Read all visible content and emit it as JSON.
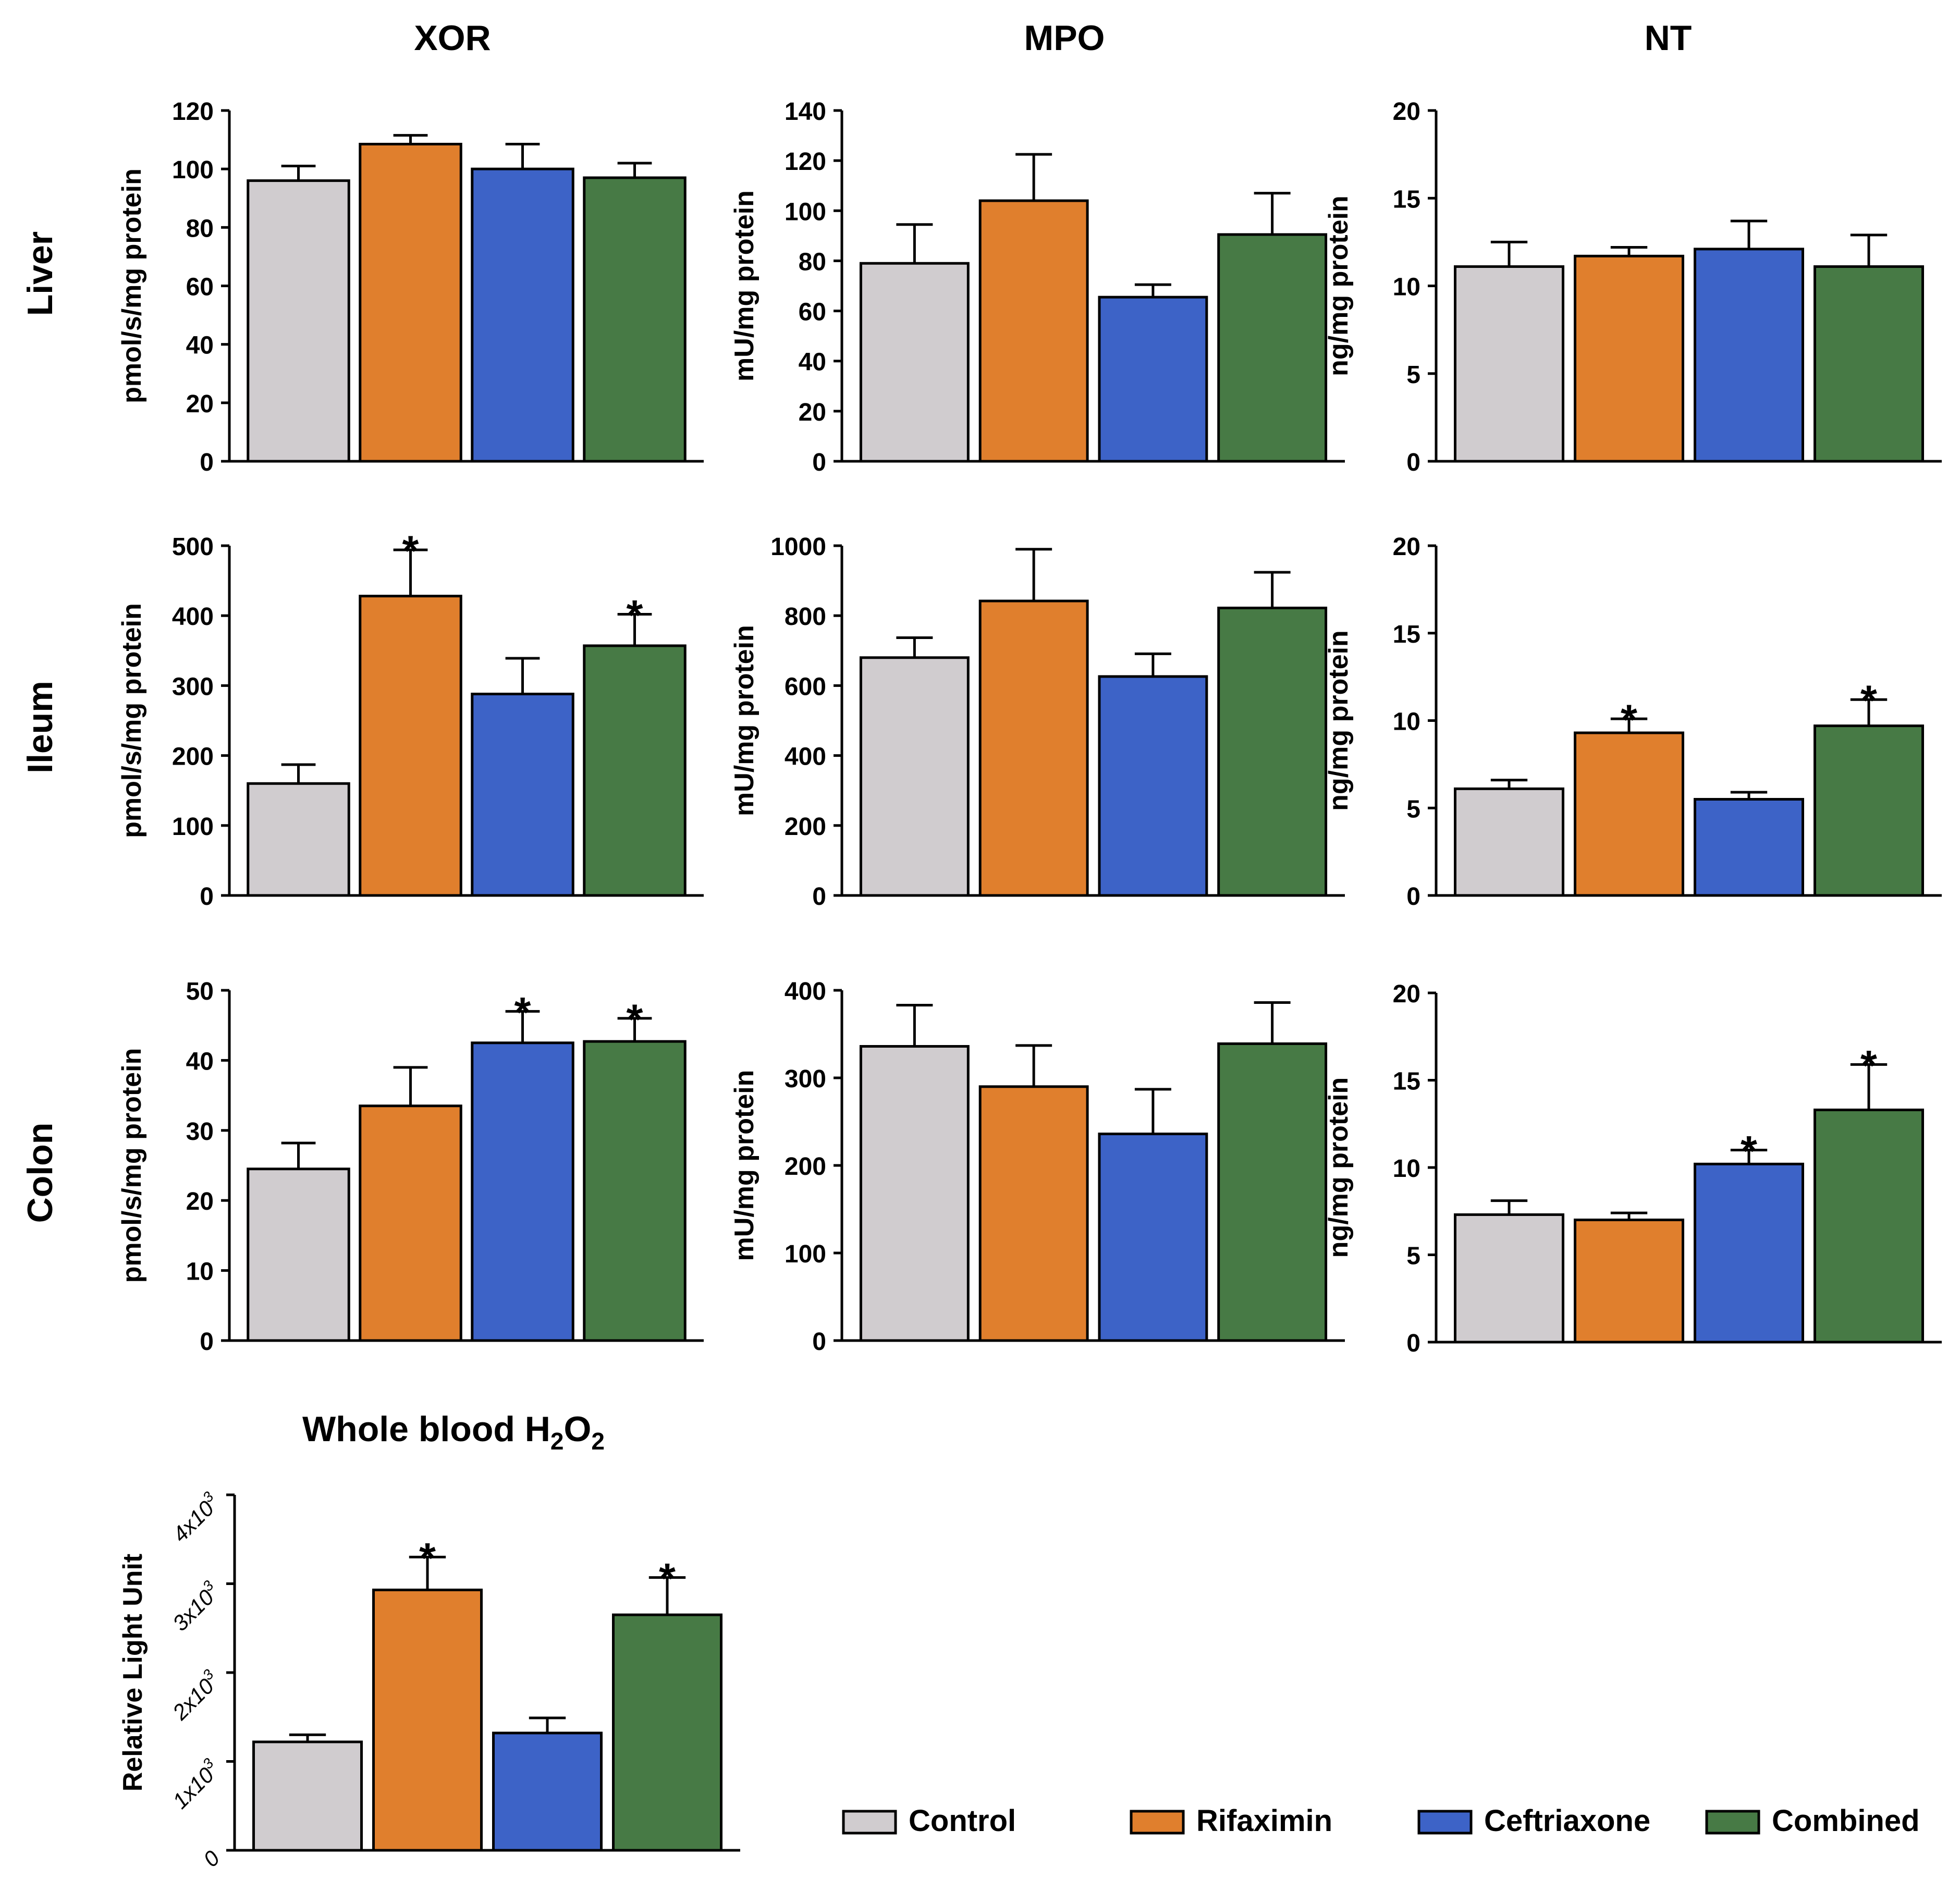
{
  "figure": {
    "column_titles": [
      "XOR",
      "MPO",
      "NT"
    ],
    "row_labels": [
      "Liver",
      "Ileum",
      "Colon"
    ],
    "blood_title": "Whole blood H",
    "blood_title_sub1": "2",
    "blood_title_mid": "O",
    "blood_title_sub2": "2"
  },
  "groups": [
    "Control",
    "Rifaximin",
    "Ceftriaxone",
    "Combined"
  ],
  "colors": {
    "Control": "#d0cccf",
    "Rifaximin": "#e07f2d",
    "Ceftriaxone": "#3d63c7",
    "Combined": "#477a45",
    "outline": "#000000"
  },
  "legend": [
    {
      "label": "Control",
      "color": "#d0cccf"
    },
    {
      "label": "Rifaximin",
      "color": "#e07f2d"
    },
    {
      "label": "Ceftriaxone",
      "color": "#3d63c7"
    },
    {
      "label": "Combined",
      "color": "#477a45"
    }
  ],
  "chart_data": [
    {
      "id": "liver-xor",
      "type": "bar",
      "row": "Liver",
      "column": "XOR",
      "ylabel": "pmol/s/mg protein",
      "categories": [
        "Control",
        "Rifaximin",
        "Ceftriaxone",
        "Combined"
      ],
      "values": [
        96,
        108.5,
        100,
        97
      ],
      "errors": [
        5,
        3,
        8.5,
        5
      ],
      "sig": [
        false,
        false,
        false,
        false
      ],
      "ylim": [
        0,
        120
      ],
      "yticks": [
        0,
        20,
        40,
        60,
        80,
        100,
        120
      ],
      "ytick_labels": [
        "0",
        "20",
        "40",
        "60",
        "80",
        "100",
        "120"
      ]
    },
    {
      "id": "liver-mpo",
      "type": "bar",
      "row": "Liver",
      "column": "MPO",
      "ylabel": "mU/mg protein",
      "categories": [
        "Control",
        "Rifaximin",
        "Ceftriaxone",
        "Combined"
      ],
      "values": [
        79,
        104,
        65.5,
        90.5
      ],
      "errors": [
        15.5,
        18.5,
        5,
        16.5
      ],
      "sig": [
        false,
        false,
        false,
        false
      ],
      "ylim": [
        0,
        140
      ],
      "yticks": [
        0,
        20,
        40,
        60,
        80,
        100,
        120,
        140
      ],
      "ytick_labels": [
        "0",
        "20",
        "40",
        "60",
        "80",
        "100",
        "120",
        "140"
      ]
    },
    {
      "id": "liver-nt",
      "type": "bar",
      "row": "Liver",
      "column": "NT",
      "ylabel": "ng/mg protein",
      "categories": [
        "Control",
        "Rifaximin",
        "Ceftriaxone",
        "Combined"
      ],
      "values": [
        11.1,
        11.7,
        12.1,
        11.1
      ],
      "errors": [
        1.4,
        0.5,
        1.6,
        1.8
      ],
      "sig": [
        false,
        false,
        false,
        false
      ],
      "ylim": [
        0,
        20
      ],
      "yticks": [
        0,
        5,
        10,
        15,
        20
      ],
      "ytick_labels": [
        "0",
        "5",
        "10",
        "15",
        "20"
      ]
    },
    {
      "id": "ileum-xor",
      "type": "bar",
      "row": "Ileum",
      "column": "XOR",
      "ylabel": "pmol/s/mg protein",
      "categories": [
        "Control",
        "Rifaximin",
        "Ceftriaxone",
        "Combined"
      ],
      "values": [
        160,
        428,
        288,
        357
      ],
      "errors": [
        27,
        66,
        51,
        45
      ],
      "sig": [
        false,
        true,
        false,
        true
      ],
      "ylim": [
        0,
        500
      ],
      "yticks": [
        0,
        100,
        200,
        300,
        400,
        500
      ],
      "ytick_labels": [
        "0",
        "100",
        "200",
        "300",
        "400",
        "500"
      ]
    },
    {
      "id": "ileum-mpo",
      "type": "bar",
      "row": "Ileum",
      "column": "MPO",
      "ylabel": "mU/mg protein",
      "categories": [
        "Control",
        "Rifaximin",
        "Ceftriaxone",
        "Combined"
      ],
      "values": [
        680,
        842,
        626,
        822
      ],
      "errors": [
        57,
        148,
        65,
        102
      ],
      "sig": [
        false,
        false,
        false,
        false
      ],
      "ylim": [
        0,
        1000
      ],
      "yticks": [
        0,
        200,
        400,
        600,
        800,
        1000
      ],
      "ytick_labels": [
        "0",
        "200",
        "400",
        "600",
        "800",
        "1000"
      ]
    },
    {
      "id": "ileum-nt",
      "type": "bar",
      "row": "Ileum",
      "column": "NT",
      "ylabel": "ng/mg protein",
      "categories": [
        "Control",
        "Rifaximin",
        "Ceftriaxone",
        "Combined"
      ],
      "values": [
        6.1,
        9.3,
        5.5,
        9.7
      ],
      "errors": [
        0.5,
        0.8,
        0.4,
        1.5
      ],
      "sig": [
        false,
        true,
        false,
        true
      ],
      "ylim": [
        0,
        20
      ],
      "yticks": [
        0,
        5,
        10,
        15,
        20
      ],
      "ytick_labels": [
        "0",
        "5",
        "10",
        "15",
        "20"
      ]
    },
    {
      "id": "colon-xor",
      "type": "bar",
      "row": "Colon",
      "column": "XOR",
      "ylabel": "pmol/s/mg protein",
      "categories": [
        "Control",
        "Rifaximin",
        "Ceftriaxone",
        "Combined"
      ],
      "values": [
        24.5,
        33.5,
        42.5,
        42.7
      ],
      "errors": [
        3.7,
        5.5,
        4.5,
        3.3
      ],
      "sig": [
        false,
        false,
        true,
        true
      ],
      "ylim": [
        0,
        50
      ],
      "yticks": [
        0,
        10,
        20,
        30,
        40,
        50
      ],
      "ytick_labels": [
        "0",
        "10",
        "20",
        "30",
        "40",
        "50"
      ]
    },
    {
      "id": "colon-mpo",
      "type": "bar",
      "row": "Colon",
      "column": "MPO",
      "ylabel": "mU/mg protein",
      "categories": [
        "Control",
        "Rifaximin",
        "Ceftriaxone",
        "Combined"
      ],
      "values": [
        336,
        290,
        236,
        339
      ],
      "errors": [
        47,
        47,
        51,
        47
      ],
      "sig": [
        false,
        false,
        false,
        false
      ],
      "ylim": [
        0,
        400
      ],
      "yticks": [
        0,
        100,
        200,
        300,
        400
      ],
      "ytick_labels": [
        "0",
        "100",
        "200",
        "300",
        "400"
      ]
    },
    {
      "id": "colon-nt",
      "type": "bar",
      "row": "Colon",
      "column": "NT",
      "ylabel": "ng/mg protein",
      "categories": [
        "Control",
        "Rifaximin",
        "Ceftriaxone",
        "Combined"
      ],
      "values": [
        7.3,
        7.0,
        10.2,
        13.3
      ],
      "errors": [
        0.8,
        0.4,
        0.8,
        2.6
      ],
      "sig": [
        false,
        false,
        true,
        true
      ],
      "ylim": [
        0,
        20
      ],
      "yticks": [
        0,
        5,
        10,
        15,
        20
      ],
      "ytick_labels": [
        "0",
        "5",
        "10",
        "15",
        "20"
      ]
    },
    {
      "id": "blood-h2o2",
      "type": "bar",
      "row": "Whole blood",
      "column": "H2O2",
      "ylabel": "Relative Light Unit",
      "categories": [
        "Control",
        "Rifaximin",
        "Ceftriaxone",
        "Combined"
      ],
      "values": [
        1220,
        2930,
        1320,
        2650
      ],
      "errors": [
        80,
        370,
        170,
        420
      ],
      "sig": [
        false,
        true,
        false,
        true
      ],
      "ylim": [
        0,
        4000
      ],
      "yticks": [
        0,
        1000,
        2000,
        3000,
        4000
      ],
      "ytick_labels": [
        "0",
        "1x10",
        "2x10",
        "3x10",
        "4x10"
      ],
      "ytick_exponent": "3"
    }
  ]
}
